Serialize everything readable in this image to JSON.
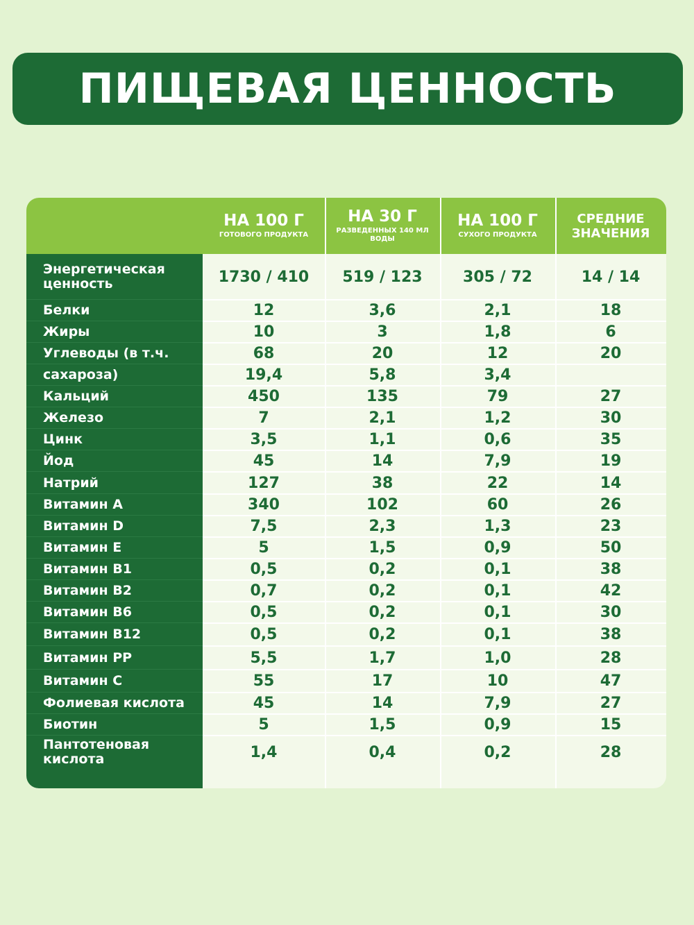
{
  "title": "ПИЩЕВАЯ ЦЕННОСТЬ",
  "headers": [
    {
      "main": "НА 100 Г",
      "sub": "готового продукта"
    },
    {
      "main": "НА 30 Г",
      "sub": "разведенных 140 мл воды"
    },
    {
      "main": "НА 100 Г",
      "sub": "сухого продукта"
    },
    {
      "line1": "СРЕДНИЕ",
      "line2": "ЗНАЧЕНИЯ"
    }
  ],
  "rows": [
    {
      "name": "Энергетическая ценность",
      "v": [
        "1730 / 410",
        "519 / 123",
        "305 / 72",
        "14 / 14"
      ]
    },
    {
      "name": "Белки",
      "v": [
        "12",
        "3,6",
        "2,1",
        "18"
      ]
    },
    {
      "name": "Жиры",
      "v": [
        "10",
        "3",
        "1,8",
        "6"
      ]
    },
    {
      "name": "Углеводы (в т.ч.",
      "v": [
        "68",
        "20",
        "12",
        "20"
      ]
    },
    {
      "name": "сахароза)",
      "v": [
        "19,4",
        "5,8",
        "3,4",
        ""
      ]
    },
    {
      "name": "Кальций",
      "v": [
        "450",
        "135",
        "79",
        "27"
      ]
    },
    {
      "name": "Железо",
      "v": [
        "7",
        "2,1",
        "1,2",
        "30"
      ]
    },
    {
      "name": "Цинк",
      "v": [
        "3,5",
        "1,1",
        "0,6",
        "35"
      ]
    },
    {
      "name": "Йод",
      "v": [
        "45",
        "14",
        "7,9",
        "19"
      ]
    },
    {
      "name": "Натрий",
      "v": [
        "127",
        "38",
        "22",
        "14"
      ]
    },
    {
      "name": "Витамин А",
      "v": [
        "340",
        "102",
        "60",
        "26"
      ]
    },
    {
      "name": "Витамин D",
      "v": [
        "7,5",
        "2,3",
        "1,3",
        "23"
      ]
    },
    {
      "name": "Витамин Е",
      "v": [
        "5",
        "1,5",
        "0,9",
        "50"
      ]
    },
    {
      "name": "Витамин В1",
      "v": [
        "0,5",
        "0,2",
        "0,1",
        "38"
      ]
    },
    {
      "name": "Витамин В2",
      "v": [
        "0,7",
        "0,2",
        "0,1",
        "42"
      ]
    },
    {
      "name": "Витамин В6",
      "v": [
        "0,5",
        "0,2",
        "0,1",
        "30"
      ]
    },
    {
      "name": "Витамин В12",
      "v": [
        "0,5",
        "0,2",
        "0,1",
        "38"
      ]
    },
    {
      "name": "Витамин РР",
      "v": [
        "5,5",
        "1,7",
        "1,0",
        "28"
      ]
    },
    {
      "name": "Витамин С",
      "v": [
        "55",
        "17",
        "10",
        "47"
      ]
    },
    {
      "name": "Фолиевая кислота",
      "v": [
        "45",
        "14",
        "7,9",
        "27"
      ]
    },
    {
      "name": "Биотин",
      "v": [
        "5",
        "1,5",
        "0,9",
        "15"
      ]
    },
    {
      "name": "Пантотеновая кислота",
      "v": [
        "1,4",
        "0,4",
        "0,2",
        "28"
      ]
    }
  ]
}
